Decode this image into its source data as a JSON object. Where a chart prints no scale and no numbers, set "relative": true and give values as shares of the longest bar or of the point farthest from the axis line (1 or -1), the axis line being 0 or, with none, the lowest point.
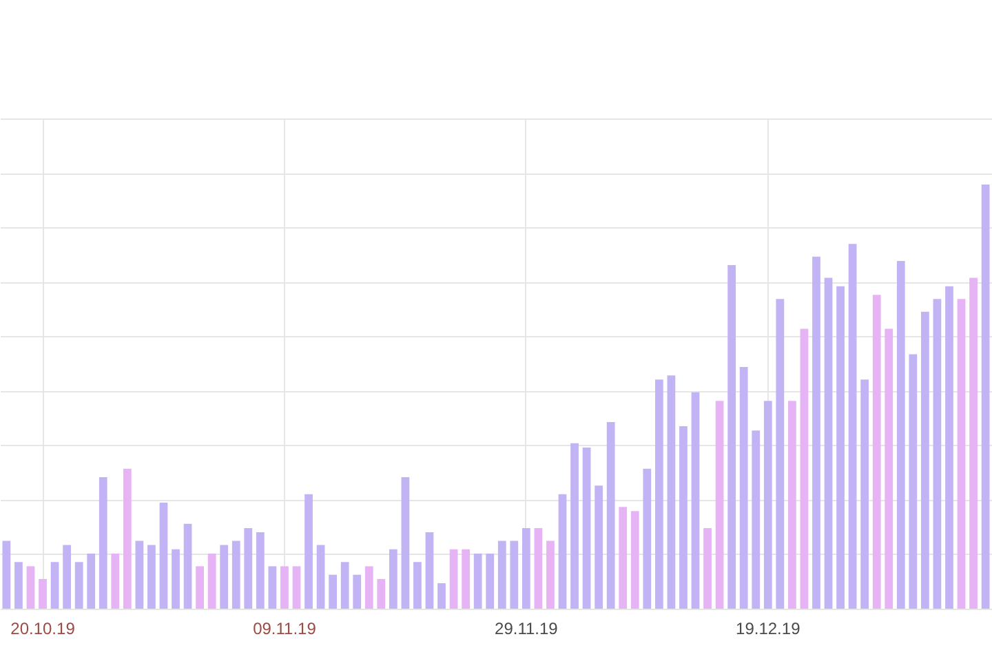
{
  "chart_data": {
    "type": "bar",
    "relative": true,
    "grid": true,
    "categories": [
      null,
      null,
      null,
      "20.10.19",
      null,
      null,
      null,
      null,
      null,
      null,
      null,
      null,
      null,
      null,
      null,
      null,
      null,
      null,
      null,
      null,
      null,
      null,
      null,
      "09.11.19",
      null,
      null,
      null,
      null,
      null,
      null,
      null,
      null,
      null,
      null,
      null,
      null,
      null,
      null,
      null,
      null,
      null,
      null,
      null,
      "29.11.19",
      null,
      null,
      null,
      null,
      null,
      null,
      null,
      null,
      null,
      null,
      null,
      null,
      null,
      null,
      null,
      null,
      null,
      null,
      null,
      "19.12.19",
      null,
      null,
      null,
      null,
      null,
      null,
      null,
      null,
      null,
      null,
      null,
      null,
      null,
      null,
      null,
      null,
      null,
      null
    ],
    "values": [
      0.16,
      0.11,
      0.1,
      0.07,
      0.11,
      0.15,
      0.11,
      0.13,
      0.31,
      0.13,
      0.33,
      0.16,
      0.15,
      0.25,
      0.14,
      0.2,
      0.1,
      0.13,
      0.15,
      0.16,
      0.19,
      0.18,
      0.1,
      0.1,
      0.1,
      0.27,
      0.15,
      0.08,
      0.11,
      0.08,
      0.1,
      0.07,
      0.14,
      0.31,
      0.11,
      0.18,
      0.06,
      0.14,
      0.14,
      0.13,
      0.13,
      0.16,
      0.16,
      0.19,
      0.19,
      0.16,
      0.27,
      0.39,
      0.38,
      0.29,
      0.44,
      0.24,
      0.23,
      0.33,
      0.54,
      0.55,
      0.43,
      0.51,
      0.19,
      0.49,
      0.81,
      0.57,
      0.42,
      0.49,
      0.73,
      0.49,
      0.66,
      0.83,
      0.78,
      0.76,
      0.86,
      0.54,
      0.74,
      0.66,
      0.82,
      0.6,
      0.7,
      0.73,
      0.76,
      0.73,
      0.78,
      1
    ],
    "colors": [
      "#c2b3f5",
      "#c2b3f5",
      "#e6b3f5",
      "#e6b3f5",
      "#c2b3f5",
      "#c2b3f5",
      "#c2b3f5",
      "#c2b3f5",
      "#c2b3f5",
      "#e6b3f5",
      "#e6b3f5",
      "#c2b3f5",
      "#c2b3f5",
      "#c2b3f5",
      "#c2b3f5",
      "#c2b3f5",
      "#e6b3f5",
      "#e6b3f5",
      "#c2b3f5",
      "#c2b3f5",
      "#c2b3f5",
      "#c2b3f5",
      "#c2b3f5",
      "#e6b3f5",
      "#e6b3f5",
      "#c2b3f5",
      "#c2b3f5",
      "#c2b3f5",
      "#c2b3f5",
      "#c2b3f5",
      "#e6b3f5",
      "#e6b3f5",
      "#c2b3f5",
      "#c2b3f5",
      "#c2b3f5",
      "#c2b3f5",
      "#c2b3f5",
      "#e6b3f5",
      "#e6b3f5",
      "#c2b3f5",
      "#c2b3f5",
      "#c2b3f5",
      "#c2b3f5",
      "#c2b3f5",
      "#e6b3f5",
      "#e6b3f5",
      "#c2b3f5",
      "#c2b3f5",
      "#c2b3f5",
      "#c2b3f5",
      "#c2b3f5",
      "#e6b3f5",
      "#e6b3f5",
      "#c2b3f5",
      "#c2b3f5",
      "#c2b3f5",
      "#c2b3f5",
      "#c2b3f5",
      "#e6b3f5",
      "#e6b3f5",
      "#c2b3f5",
      "#c2b3f5",
      "#c2b3f5",
      "#c2b3f5",
      "#c2b3f5",
      "#e6b3f5",
      "#e6b3f5",
      "#c2b3f5",
      "#c2b3f5",
      "#c2b3f5",
      "#c2b3f5",
      "#c2b3f5",
      "#e6b3f5",
      "#e6b3f5",
      "#c2b3f5",
      "#c2b3f5",
      "#c2b3f5",
      "#c2b3f5",
      "#c2b3f5",
      "#e6b3f5",
      "#e6b3f5",
      "#c2b3f5"
    ]
  }
}
